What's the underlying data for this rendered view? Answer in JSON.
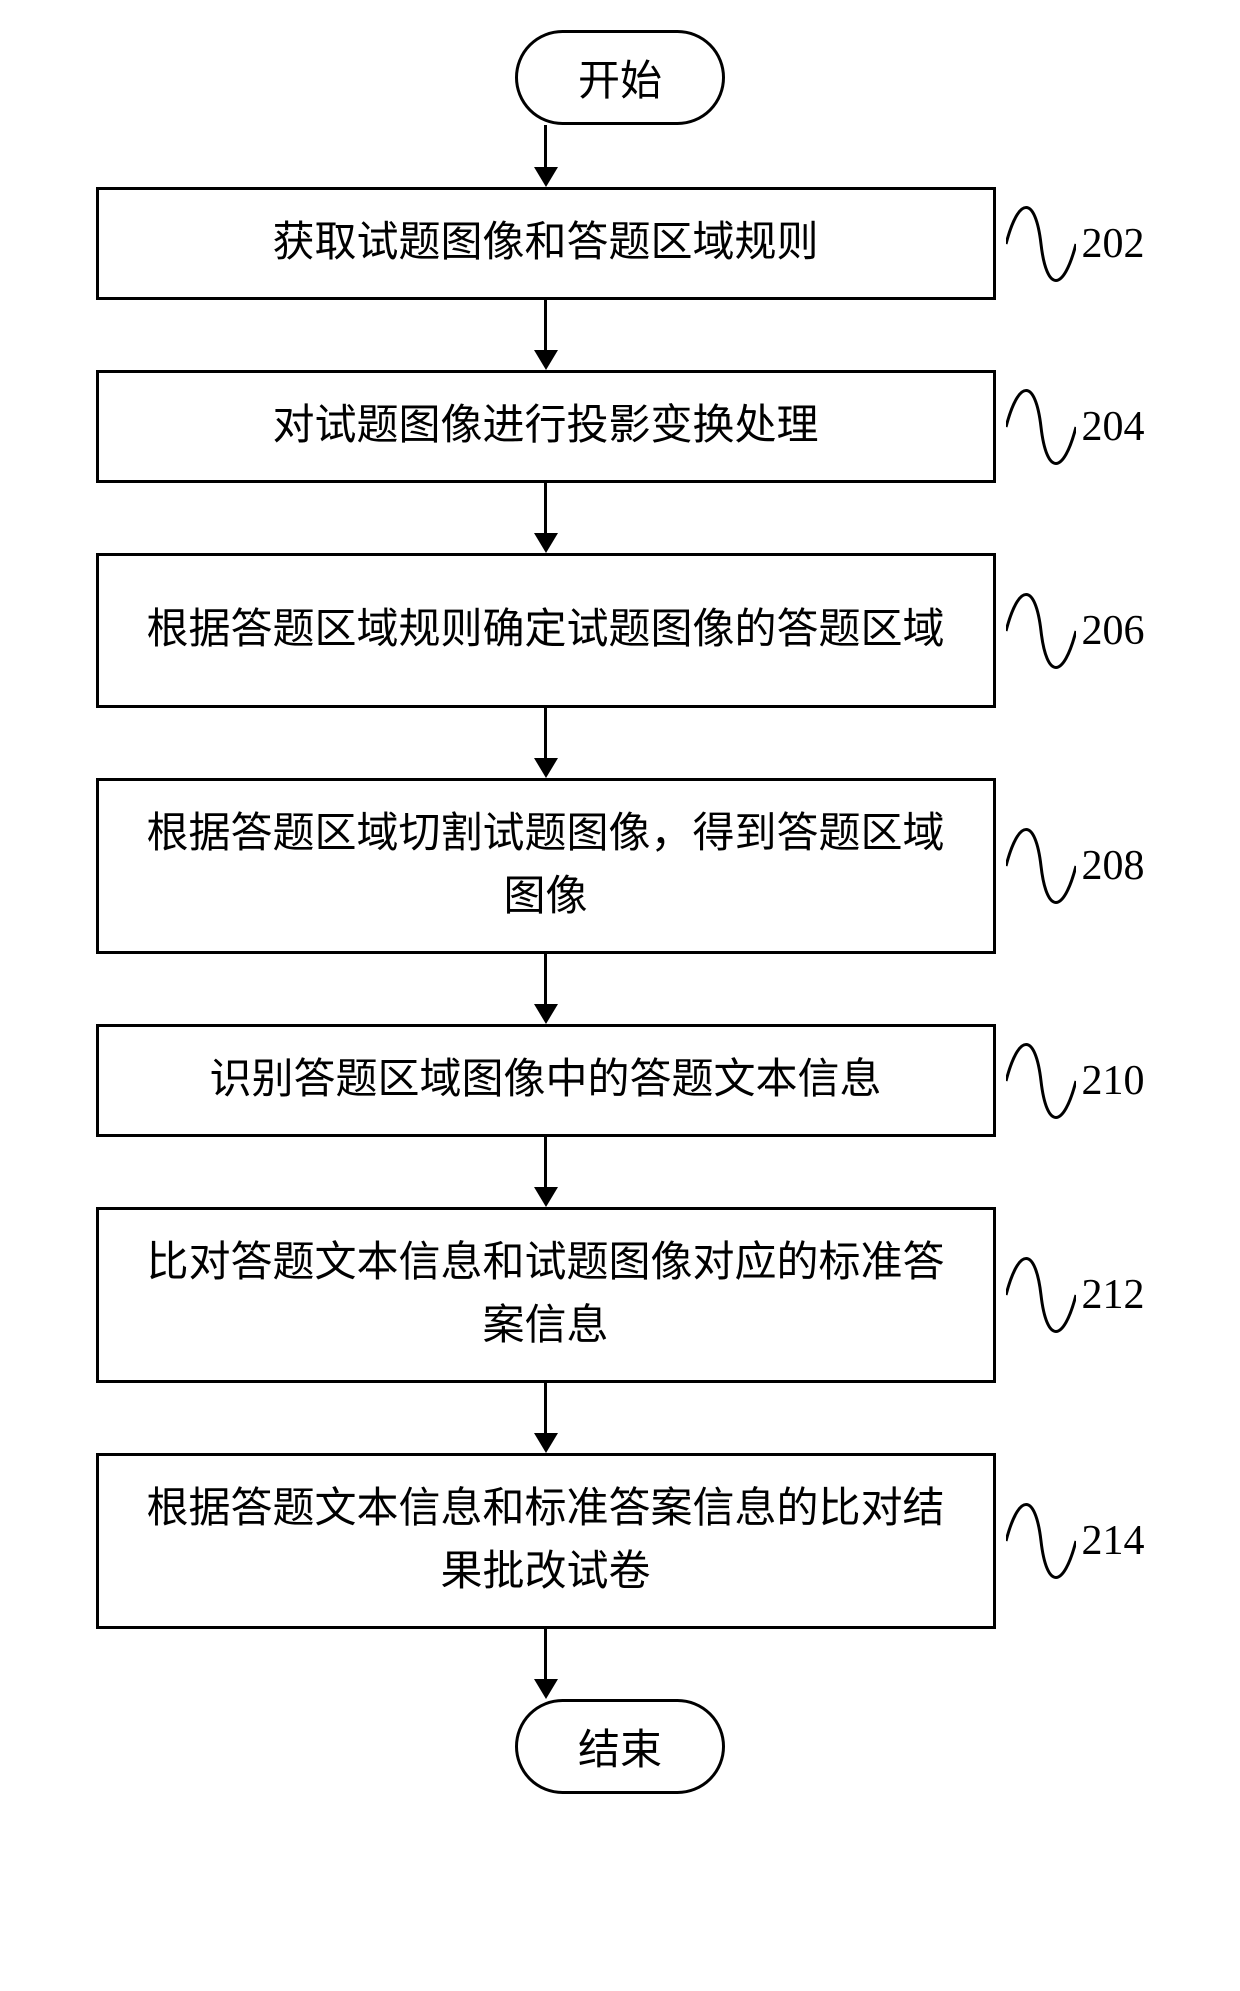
{
  "flowchart": {
    "start_label": "开始",
    "end_label": "结束",
    "steps": [
      {
        "text": "获取试题图像和答题区域规则",
        "number": "202",
        "lines": 1
      },
      {
        "text": "对试题图像进行投影变换处理",
        "number": "204",
        "lines": 1
      },
      {
        "text": "根据答题区域规则确定试题图像的答题区域",
        "number": "206",
        "lines": 2
      },
      {
        "text": "根据答题区域切割试题图像，得到答题区域图像",
        "number": "208",
        "lines": 2
      },
      {
        "text": "识别答题区域图像中的答题文本信息",
        "number": "210",
        "lines": 1
      },
      {
        "text": "比对答题文本信息和试题图像对应的标准答案信息",
        "number": "212",
        "lines": 2
      },
      {
        "text": "根据答题文本信息和标准答案信息的比对结果批改试卷",
        "number": "214",
        "lines": 2
      }
    ],
    "style": {
      "border_color": "#000000",
      "border_width": 3,
      "background": "#ffffff",
      "font_size": 42,
      "arrow_short": 42,
      "arrow_long": 50,
      "wave_width": 70,
      "wave_height": 100
    }
  }
}
